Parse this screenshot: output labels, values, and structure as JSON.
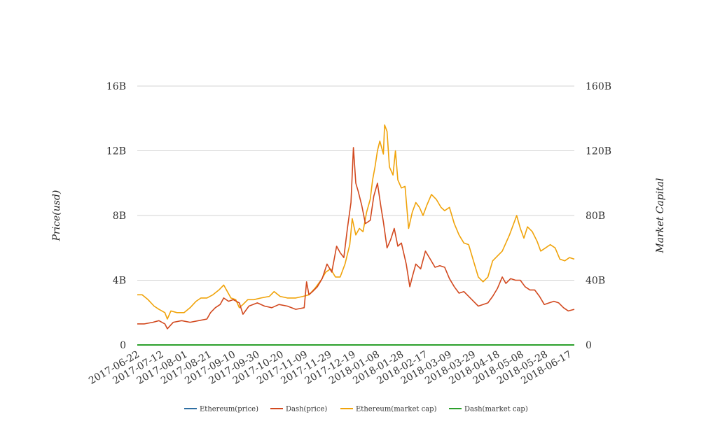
{
  "chart_data": {
    "type": "line",
    "title": "",
    "y_left": {
      "label": "Price(usd)",
      "ticks": [
        "0",
        "4B",
        "8B",
        "12B",
        "16B"
      ],
      "range": [
        0,
        16
      ]
    },
    "y_right": {
      "label": "Market Capital",
      "ticks": [
        "0",
        "40B",
        "80B",
        "120B",
        "160B"
      ],
      "range": [
        0,
        160
      ]
    },
    "x_ticks": [
      "2017-06-22",
      "2017-07-12",
      "2017-08-01",
      "2017-08-21",
      "2017-09-10",
      "2017-09-30",
      "2017-10-20",
      "2017-11-09",
      "2017-11-29",
      "2017-12-19",
      "2018-01-08",
      "2018-01-28",
      "2018-02-17",
      "2018-03-09",
      "2018-03-29",
      "2018-04-18",
      "2018-05-08",
      "2018-05-28",
      "2018-06-17"
    ],
    "x_range": [
      "2017-06-22",
      "2018-06-21"
    ],
    "grid": true,
    "legend_position": "bottom",
    "series": [
      {
        "name": "Ethereum(price)",
        "color": "#2f6fa3",
        "axis": "left",
        "x": [
          "2017-06-22",
          "2018-06-21"
        ],
        "values": [
          0.0003,
          0.0005
        ]
      },
      {
        "name": "Dash(price)",
        "color": "#d2491f",
        "axis": "left",
        "x": [
          "2017-06-22",
          "2017-06-28",
          "2017-07-05",
          "2017-07-10",
          "2017-07-15",
          "2017-07-17",
          "2017-07-22",
          "2017-07-29",
          "2017-08-05",
          "2017-08-12",
          "2017-08-19",
          "2017-08-22",
          "2017-08-26",
          "2017-08-30",
          "2017-09-02",
          "2017-09-06",
          "2017-09-10",
          "2017-09-15",
          "2017-09-18",
          "2017-09-23",
          "2017-09-30",
          "2017-10-06",
          "2017-10-12",
          "2017-10-18",
          "2017-10-25",
          "2017-11-01",
          "2017-11-08",
          "2017-11-10",
          "2017-11-12",
          "2017-11-15",
          "2017-11-19",
          "2017-11-23",
          "2017-11-27",
          "2017-12-01",
          "2017-12-05",
          "2017-12-08",
          "2017-12-11",
          "2017-12-14",
          "2017-12-17",
          "2017-12-19",
          "2017-12-21",
          "2017-12-23",
          "2017-12-26",
          "2017-12-29",
          "2018-01-02",
          "2018-01-05",
          "2018-01-08",
          "2018-01-11",
          "2018-01-13",
          "2018-01-16",
          "2018-01-19",
          "2018-01-22",
          "2018-01-25",
          "2018-01-28",
          "2018-02-01",
          "2018-02-04",
          "2018-02-06",
          "2018-02-09",
          "2018-02-13",
          "2018-02-17",
          "2018-02-21",
          "2018-02-25",
          "2018-03-01",
          "2018-03-05",
          "2018-03-09",
          "2018-03-13",
          "2018-03-17",
          "2018-03-21",
          "2018-03-25",
          "2018-03-29",
          "2018-04-02",
          "2018-04-06",
          "2018-04-10",
          "2018-04-14",
          "2018-04-18",
          "2018-04-22",
          "2018-04-25",
          "2018-04-29",
          "2018-05-03",
          "2018-05-07",
          "2018-05-11",
          "2018-05-15",
          "2018-05-19",
          "2018-05-23",
          "2018-05-27",
          "2018-05-31",
          "2018-06-04",
          "2018-06-08",
          "2018-06-12",
          "2018-06-16",
          "2018-06-21"
        ],
        "values": [
          1.3,
          1.3,
          1.4,
          1.5,
          1.3,
          1.0,
          1.4,
          1.5,
          1.4,
          1.5,
          1.6,
          2.0,
          2.3,
          2.5,
          2.9,
          2.7,
          2.8,
          2.6,
          1.9,
          2.4,
          2.6,
          2.4,
          2.3,
          2.5,
          2.4,
          2.2,
          2.3,
          3.9,
          3.1,
          3.3,
          3.6,
          4.1,
          5.0,
          4.5,
          6.1,
          5.7,
          5.4,
          7.2,
          8.8,
          12.2,
          10.0,
          9.5,
          8.6,
          7.5,
          7.7,
          9.2,
          10.0,
          8.5,
          7.6,
          6.0,
          6.5,
          7.2,
          6.1,
          6.3,
          5.0,
          3.6,
          4.2,
          5.0,
          4.7,
          5.8,
          5.3,
          4.8,
          4.9,
          4.8,
          4.1,
          3.6,
          3.2,
          3.3,
          3.0,
          2.7,
          2.4,
          2.5,
          2.6,
          3.0,
          3.5,
          4.2,
          3.8,
          4.1,
          4.0,
          4.0,
          3.6,
          3.4,
          3.4,
          3.0,
          2.5,
          2.6,
          2.7,
          2.6,
          2.3,
          2.1,
          2.2
        ]
      },
      {
        "name": "Ethereum(market cap)",
        "color": "#f0a30a",
        "axis": "right",
        "x": [
          "2017-06-22",
          "2017-06-26",
          "2017-07-01",
          "2017-07-06",
          "2017-07-10",
          "2017-07-15",
          "2017-07-17",
          "2017-07-20",
          "2017-07-25",
          "2017-07-31",
          "2017-08-05",
          "2017-08-10",
          "2017-08-14",
          "2017-08-19",
          "2017-08-24",
          "2017-08-29",
          "2017-09-02",
          "2017-09-05",
          "2017-09-08",
          "2017-09-12",
          "2017-09-15",
          "2017-09-18",
          "2017-09-22",
          "2017-09-27",
          "2017-10-03",
          "2017-10-10",
          "2017-10-14",
          "2017-10-19",
          "2017-10-25",
          "2017-11-01",
          "2017-11-07",
          "2017-11-12",
          "2017-11-17",
          "2017-11-22",
          "2017-11-26",
          "2017-11-30",
          "2017-12-04",
          "2017-12-08",
          "2017-12-12",
          "2017-12-16",
          "2017-12-18",
          "2017-12-21",
          "2017-12-24",
          "2017-12-27",
          "2017-12-30",
          "2018-01-02",
          "2018-01-04",
          "2018-01-06",
          "2018-01-08",
          "2018-01-10",
          "2018-01-13",
          "2018-01-14",
          "2018-01-16",
          "2018-01-18",
          "2018-01-21",
          "2018-01-23",
          "2018-01-25",
          "2018-01-28",
          "2018-01-31",
          "2018-02-03",
          "2018-02-06",
          "2018-02-09",
          "2018-02-12",
          "2018-02-15",
          "2018-02-18",
          "2018-02-22",
          "2018-02-26",
          "2018-03-02",
          "2018-03-05",
          "2018-03-09",
          "2018-03-13",
          "2018-03-17",
          "2018-03-21",
          "2018-03-25",
          "2018-03-29",
          "2018-04-02",
          "2018-04-06",
          "2018-04-10",
          "2018-04-14",
          "2018-04-18",
          "2018-04-22",
          "2018-04-25",
          "2018-04-28",
          "2018-05-01",
          "2018-05-04",
          "2018-05-07",
          "2018-05-10",
          "2018-05-13",
          "2018-05-17",
          "2018-05-21",
          "2018-05-24",
          "2018-05-28",
          "2018-06-01",
          "2018-06-05",
          "2018-06-09",
          "2018-06-13",
          "2018-06-17",
          "2018-06-21"
        ],
        "values": [
          31,
          31,
          28,
          24,
          22,
          20,
          16,
          21,
          20,
          20,
          23,
          27,
          29,
          29,
          31,
          34,
          37,
          33,
          29,
          28,
          23,
          25,
          28,
          28,
          29,
          30,
          33,
          30,
          29,
          29,
          30,
          31,
          35,
          40,
          45,
          47,
          42,
          42,
          50,
          62,
          78,
          68,
          72,
          70,
          82,
          90,
          102,
          110,
          120,
          126,
          118,
          136,
          132,
          110,
          105,
          120,
          102,
          97,
          98,
          72,
          82,
          88,
          85,
          80,
          86,
          93,
          90,
          85,
          83,
          85,
          75,
          68,
          63,
          62,
          52,
          42,
          39,
          42,
          52,
          55,
          58,
          63,
          68,
          74,
          80,
          72,
          66,
          73,
          70,
          64,
          58,
          60,
          62,
          60,
          53,
          52,
          54,
          53
        ]
      },
      {
        "name": "Dash(market cap)",
        "color": "#2ca02c",
        "axis": "right",
        "x": [
          "2017-06-22",
          "2018-06-21"
        ],
        "values": [
          0.01,
          0.01
        ]
      }
    ]
  }
}
